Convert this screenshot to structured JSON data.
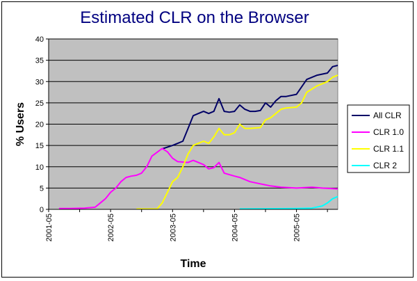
{
  "chart_data": {
    "type": "line",
    "title": "Estimated CLR on the Browser",
    "xlabel": "Time",
    "ylabel": "% Users",
    "ylim": [
      0,
      40
    ],
    "yticks": [
      0,
      5,
      10,
      15,
      20,
      25,
      30,
      35,
      40
    ],
    "xlim": [
      "2001-05",
      "2006-01"
    ],
    "xticks": [
      "2001-05",
      "2002-05",
      "2003-05",
      "2004-05",
      "2005-05"
    ],
    "grid": "horizontal",
    "legend_position": "right",
    "colors": {
      "plot_background": "#c0c0c0",
      "title": "#000080"
    },
    "series": [
      {
        "name": "All CLR",
        "color": "#000066",
        "points": [
          [
            "2003-03",
            14.2
          ],
          [
            "2003-05",
            15.0
          ],
          [
            "2003-06",
            15.5
          ],
          [
            "2003-07",
            16.0
          ],
          [
            "2003-08",
            19.0
          ],
          [
            "2003-09",
            22.0
          ],
          [
            "2003-10",
            22.5
          ],
          [
            "2003-11",
            23.0
          ],
          [
            "2003-12",
            22.5
          ],
          [
            "2004-01",
            23.0
          ],
          [
            "2004-02",
            26.0
          ],
          [
            "2004-03",
            23.0
          ],
          [
            "2004-04",
            22.8
          ],
          [
            "2004-05",
            23.0
          ],
          [
            "2004-06",
            24.5
          ],
          [
            "2004-07",
            23.5
          ],
          [
            "2004-08",
            23.0
          ],
          [
            "2004-09",
            23.0
          ],
          [
            "2004-10",
            23.2
          ],
          [
            "2004-11",
            25.0
          ],
          [
            "2004-12",
            24.0
          ],
          [
            "2005-01",
            25.5
          ],
          [
            "2005-02",
            26.5
          ],
          [
            "2005-03",
            26.5
          ],
          [
            "2005-05",
            27.0
          ],
          [
            "2005-07",
            30.5
          ],
          [
            "2005-09",
            31.5
          ],
          [
            "2005-11",
            32.0
          ],
          [
            "2005-12",
            33.5
          ],
          [
            "2006-01",
            33.8
          ]
        ]
      },
      {
        "name": "CLR 1.0",
        "color": "#ff00ff",
        "points": [
          [
            "2001-07",
            0.2
          ],
          [
            "2001-09",
            0.2
          ],
          [
            "2001-12",
            0.3
          ],
          [
            "2002-02",
            0.5
          ],
          [
            "2002-03",
            1.5
          ],
          [
            "2002-04",
            2.5
          ],
          [
            "2002-05",
            4.0
          ],
          [
            "2002-06",
            5.0
          ],
          [
            "2002-07",
            6.5
          ],
          [
            "2002-08",
            7.5
          ],
          [
            "2002-09",
            7.8
          ],
          [
            "2002-10",
            8.0
          ],
          [
            "2002-11",
            8.5
          ],
          [
            "2002-12",
            10.0
          ],
          [
            "2003-01",
            12.5
          ],
          [
            "2003-03",
            14.3
          ],
          [
            "2003-04",
            13.5
          ],
          [
            "2003-05",
            12.0
          ],
          [
            "2003-06",
            11.2
          ],
          [
            "2003-08",
            11.0
          ],
          [
            "2003-09",
            11.5
          ],
          [
            "2003-10",
            11.0
          ],
          [
            "2003-11",
            10.5
          ],
          [
            "2003-12",
            9.5
          ],
          [
            "2004-01",
            9.8
          ],
          [
            "2004-02",
            11.0
          ],
          [
            "2004-03",
            8.5
          ],
          [
            "2004-05",
            7.8
          ],
          [
            "2004-06",
            7.5
          ],
          [
            "2004-08",
            6.5
          ],
          [
            "2004-10",
            6.0
          ],
          [
            "2004-12",
            5.5
          ],
          [
            "2005-02",
            5.2
          ],
          [
            "2005-05",
            5.0
          ],
          [
            "2005-08",
            5.2
          ],
          [
            "2005-10",
            5.0
          ],
          [
            "2006-01",
            4.8
          ]
        ]
      },
      {
        "name": "CLR 1.1",
        "color": "#ffff00",
        "points": [
          [
            "2002-10",
            0.1
          ],
          [
            "2003-02",
            0.1
          ],
          [
            "2003-03",
            1.5
          ],
          [
            "2003-04",
            4.0
          ],
          [
            "2003-05",
            6.5
          ],
          [
            "2003-06",
            7.5
          ],
          [
            "2003-07",
            10.0
          ],
          [
            "2003-08",
            13.0
          ],
          [
            "2003-09",
            15.0
          ],
          [
            "2003-10",
            15.5
          ],
          [
            "2003-11",
            16.0
          ],
          [
            "2003-12",
            15.5
          ],
          [
            "2004-01",
            17.0
          ],
          [
            "2004-02",
            19.0
          ],
          [
            "2004-03",
            17.5
          ],
          [
            "2004-04",
            17.5
          ],
          [
            "2004-05",
            18.0
          ],
          [
            "2004-06",
            20.0
          ],
          [
            "2004-07",
            19.0
          ],
          [
            "2004-08",
            19.0
          ],
          [
            "2004-10",
            19.2
          ],
          [
            "2004-11",
            21.0
          ],
          [
            "2004-12",
            21.5
          ],
          [
            "2005-01",
            22.5
          ],
          [
            "2005-02",
            23.5
          ],
          [
            "2005-03",
            23.8
          ],
          [
            "2005-05",
            24.0
          ],
          [
            "2005-06",
            25.0
          ],
          [
            "2005-07",
            27.5
          ],
          [
            "2005-09",
            29.0
          ],
          [
            "2005-11",
            30.0
          ],
          [
            "2005-12",
            31.0
          ],
          [
            "2006-01",
            31.5
          ]
        ]
      },
      {
        "name": "CLR 2",
        "color": "#00ffff",
        "points": [
          [
            "2004-06",
            0.1
          ],
          [
            "2005-05",
            0.2
          ],
          [
            "2005-08",
            0.3
          ],
          [
            "2005-10",
            0.8
          ],
          [
            "2005-11",
            1.5
          ],
          [
            "2005-12",
            2.5
          ],
          [
            "2006-01",
            3.0
          ]
        ]
      }
    ]
  }
}
